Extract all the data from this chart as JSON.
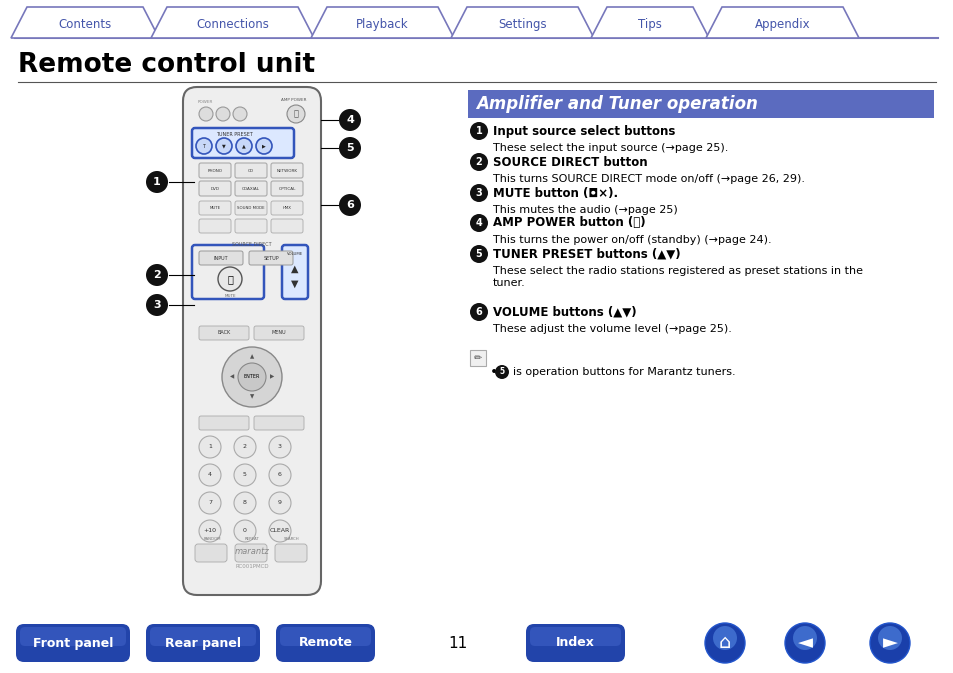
{
  "title": "Remote control unit",
  "section_title": "Amplifier and Tuner operation",
  "page_number": "11",
  "background_color": "#ffffff",
  "tab_border_color": "#7777bb",
  "tab_text_color": "#4455aa",
  "tabs": [
    "Contents",
    "Connections",
    "Playback",
    "Settings",
    "Tips",
    "Appendix"
  ],
  "bottom_buttons": [
    "Front panel",
    "Rear panel",
    "Remote",
    "Index"
  ],
  "bottom_button_color_top": "#3a6fd8",
  "bottom_button_color_bot": "#1a3fa0",
  "description_items": [
    {
      "num": "1",
      "bold": "Input source select buttons",
      "text": "These select the input source (→page 25)."
    },
    {
      "num": "2",
      "bold": "SOURCE DIRECT button",
      "text": "This turns SOURCE DIRECT mode on/off (→page 26, 29)."
    },
    {
      "num": "3",
      "bold": "MUTE button (◘×).",
      "text": "This mutes the audio (→page 25)"
    },
    {
      "num": "4",
      "bold": "AMP POWER button (⏻)",
      "text": "This turns the power on/off (standby) (→page 24)."
    },
    {
      "num": "5",
      "bold": "TUNER PRESET buttons (▲▼)",
      "text_line1": "These select the radio stations registered as preset stations in the",
      "text_line2": "tuner."
    },
    {
      "num": "6",
      "bold": "VOLUME buttons (▲▼)",
      "text": "These adjust the volume level (→page 25)."
    }
  ],
  "note_text": "is operation buttons for Marantz tuners.",
  "section_bg": "#5b6bbf",
  "callout_bg": "#111111",
  "callout_outline": "#333333",
  "remote_body": "#eeeeee",
  "remote_border": "#666666",
  "blue_highlight": "#3355bb",
  "blue_light": "#ccd8f5"
}
